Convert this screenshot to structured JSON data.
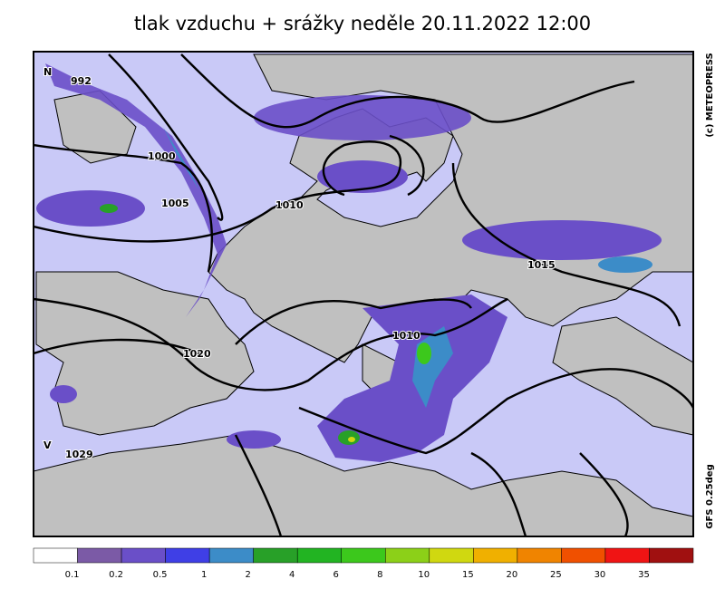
{
  "title": "tlak vzduchu + srážky  neděle 20.11.2022 12:00",
  "map": {
    "centers": [
      {
        "letter": "N",
        "value": "992"
      },
      {
        "letter": "V",
        "value": "1029"
      }
    ],
    "isobar_labels": [
      "1000",
      "1005",
      "1010",
      "1015",
      "1010",
      "1020"
    ],
    "copyright": "(c) METEOPRESS",
    "model": "GFS 0.25deg"
  },
  "legend": {
    "ticks": [
      0.1,
      0.2,
      0.5,
      1,
      2,
      4,
      6,
      8,
      10,
      15,
      20,
      25,
      30,
      35
    ],
    "colors": [
      "#ffffff",
      "#7b5aa6",
      "#6a4fc8",
      "#3f3fe6",
      "#3c8cc8",
      "#28a028",
      "#22b422",
      "#3cc81c",
      "#8cd018",
      "#d0d810",
      "#f0b000",
      "#f08400",
      "#f05000",
      "#f01414",
      "#a01010"
    ]
  }
}
